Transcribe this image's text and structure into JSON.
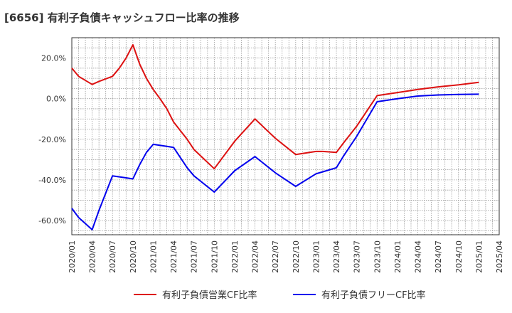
{
  "chart_data": {
    "type": "line",
    "title": "[6656]  有利子負債キャッシュフロー比率の推移",
    "xlabel": "",
    "ylabel": "",
    "x_ticks": [
      "2020/01",
      "2020/04",
      "2020/07",
      "2020/10",
      "2021/01",
      "2021/04",
      "2021/07",
      "2021/10",
      "2022/01",
      "2022/04",
      "2022/07",
      "2022/10",
      "2023/01",
      "2023/04",
      "2023/07",
      "2023/10",
      "2024/01",
      "2024/04",
      "2024/07",
      "2024/10",
      "2025/01",
      "2025/04"
    ],
    "y_ticks": [
      20,
      0,
      -20,
      -40,
      -60
    ],
    "y_tick_labels": [
      "20.0%",
      "0.0%",
      "-20.0%",
      "-40.0%",
      "-60.0%"
    ],
    "xlim": [
      0,
      63
    ],
    "ylim": [
      -67,
      30
    ],
    "grid": true,
    "legend_position": "bottom",
    "series": [
      {
        "name": "有利子負債営業CF比率",
        "color": "#dd1111",
        "x": [
          0,
          1,
          3,
          4,
          6,
          7,
          8,
          9,
          10,
          11,
          12,
          13,
          14,
          15,
          17,
          18,
          21,
          24,
          27,
          30,
          33,
          36,
          37,
          39,
          40,
          42,
          45,
          48,
          51,
          54,
          57,
          60
        ],
        "y": [
          15,
          11,
          7,
          8.5,
          11,
          15,
          20,
          26.5,
          17,
          10,
          4.5,
          0,
          -5,
          -11.5,
          -20,
          -25,
          -34.5,
          -21,
          -10,
          -19.5,
          -27.5,
          -26,
          -26,
          -26.5,
          -22,
          -13.5,
          1.5,
          3,
          4.5,
          5.8,
          6.8,
          8
        ]
      },
      {
        "name": "有利子負債フリーCF比率",
        "color": "#0000ee",
        "x": [
          0,
          1,
          3,
          4,
          6,
          7,
          8,
          9,
          10,
          11,
          12,
          14,
          15,
          17,
          18,
          21,
          24,
          27,
          30,
          33,
          36,
          37,
          39,
          40,
          42,
          45,
          48,
          51,
          54,
          57,
          60
        ],
        "y": [
          -54,
          -58.5,
          -64.5,
          -55,
          -38,
          -38.5,
          -39,
          -39.5,
          -32.5,
          -26.5,
          -22.5,
          -23.5,
          -24,
          -34,
          -38,
          -46,
          -35.5,
          -28.5,
          -36.5,
          -43.2,
          -37,
          -36,
          -34,
          -28.5,
          -18.5,
          -1.5,
          0,
          1.3,
          1.8,
          2.1,
          2.2
        ]
      }
    ]
  }
}
